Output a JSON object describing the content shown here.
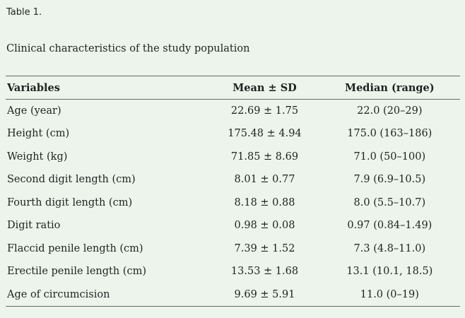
{
  "page": {
    "title": "Table 1.",
    "caption": "Clinical characteristics of the study population"
  },
  "table": {
    "columns": [
      "Variables",
      "Mean ± SD",
      "Median (range)"
    ],
    "rows": [
      {
        "variable": "Age (year)",
        "mean_sd": "22.69 ± 1.75",
        "median_range": "22.0 (20–29)"
      },
      {
        "variable": "Height (cm)",
        "mean_sd": "175.48 ± 4.94",
        "median_range": "175.0 (163–186)"
      },
      {
        "variable": "Weight (kg)",
        "mean_sd": "71.85 ± 8.69",
        "median_range": "71.0 (50–100)"
      },
      {
        "variable": "Second digit length (cm)",
        "mean_sd": "8.01 ± 0.77",
        "median_range": "7.9 (6.9–10.5)"
      },
      {
        "variable": "Fourth digit length (cm)",
        "mean_sd": "8.18 ± 0.88",
        "median_range": "8.0 (5.5–10.7)"
      },
      {
        "variable": "Digit ratio",
        "mean_sd": "0.98 ± 0.08",
        "median_range": "0.97 (0.84–1.49)"
      },
      {
        "variable": "Flaccid penile length (cm)",
        "mean_sd": "7.39 ± 1.52",
        "median_range": "7.3 (4.8–11.0)"
      },
      {
        "variable": "Erectile penile length (cm)",
        "mean_sd": "13.53 ± 1.68",
        "median_range": "13.1 (10.1, 18.5)"
      },
      {
        "variable": "Age of circumcision",
        "mean_sd": "9.69 ± 5.91",
        "median_range": "11.0 (0–19)"
      }
    ]
  },
  "colors": {
    "background": "#ecf4eb",
    "text": "#1d2421",
    "rule": "#676c64"
  }
}
